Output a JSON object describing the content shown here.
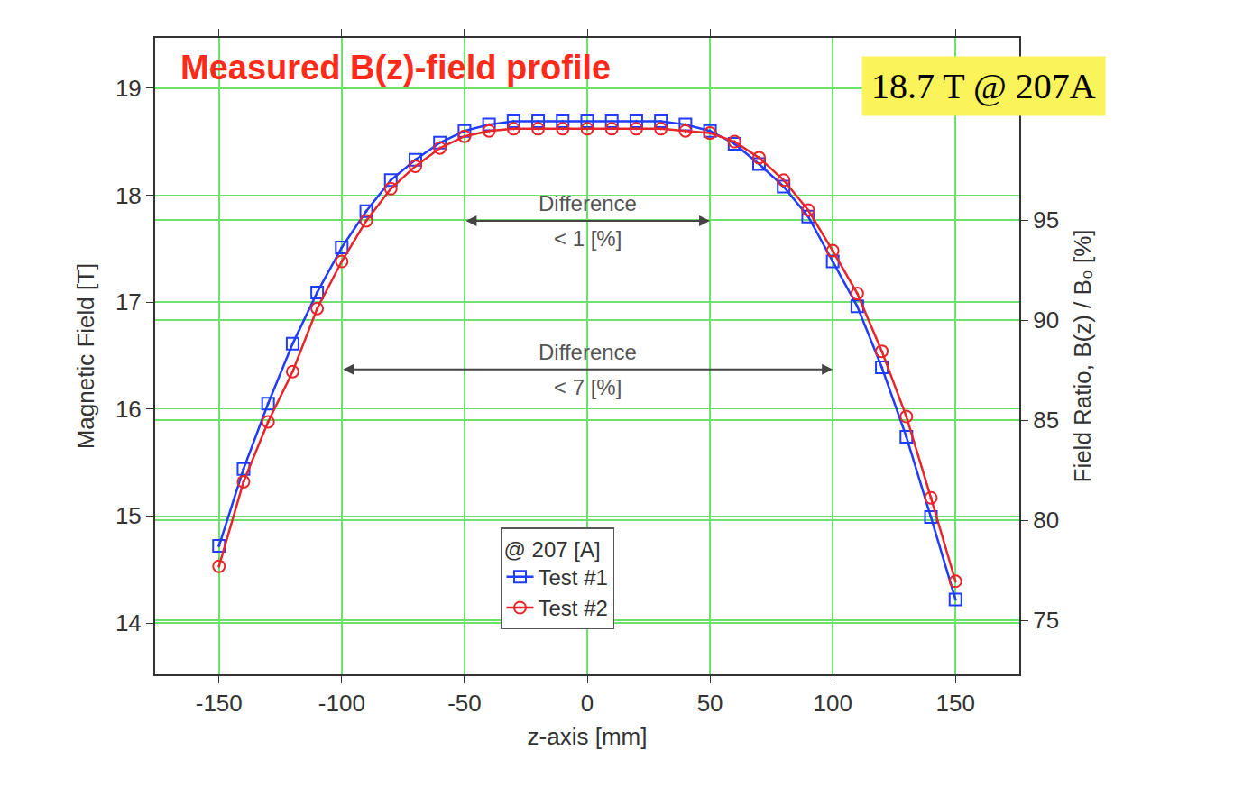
{
  "chart_data": {
    "type": "line",
    "title": "Measured B(z)-field profile",
    "x_label": "z-axis [mm]",
    "y_label": "Magnetic Field [T]",
    "y2_label": "Field Ratio, B(z) / B₀ [%]",
    "x": [
      -150,
      -140,
      -130,
      -120,
      -110,
      -100,
      -90,
      -80,
      -70,
      -60,
      -50,
      -40,
      -30,
      -20,
      -10,
      0,
      10,
      20,
      30,
      40,
      50,
      60,
      70,
      80,
      90,
      100,
      110,
      120,
      130,
      140,
      150
    ],
    "series": [
      {
        "name": "Test #1",
        "color": "#1f3cff",
        "marker": "square",
        "values": [
          14.72,
          15.44,
          16.05,
          16.61,
          17.09,
          17.51,
          17.85,
          18.14,
          18.33,
          18.49,
          18.6,
          18.66,
          18.69,
          18.69,
          18.69,
          18.69,
          18.69,
          18.69,
          18.69,
          18.66,
          18.6,
          18.48,
          18.29,
          18.08,
          17.8,
          17.38,
          16.96,
          16.39,
          15.74,
          14.99,
          14.22
        ]
      },
      {
        "name": "Test #2",
        "color": "#e8262a",
        "marker": "circle",
        "values": [
          14.53,
          15.32,
          15.88,
          16.35,
          16.94,
          17.38,
          17.76,
          18.06,
          18.27,
          18.44,
          18.55,
          18.6,
          18.62,
          18.62,
          18.62,
          18.62,
          18.62,
          18.62,
          18.62,
          18.6,
          18.58,
          18.5,
          18.35,
          18.14,
          17.86,
          17.48,
          17.08,
          16.54,
          15.93,
          15.17,
          14.39
        ]
      }
    ],
    "xlim": [
      -176,
      176
    ],
    "ylim": [
      13.52,
      19.47
    ],
    "y2lim": [
      72.3,
      104.1
    ],
    "xticks": [
      -150,
      -100,
      -50,
      0,
      50,
      100,
      150
    ],
    "yticks": [
      14,
      15,
      16,
      17,
      18,
      19
    ],
    "y2ticks": [
      75,
      80,
      85,
      90,
      95
    ],
    "grid": true,
    "legend": "bottom",
    "legend_title": "@ 207 [A]",
    "annotations": [
      {
        "text": [
          "Difference",
          "< 1 [%]"
        ],
        "x": [
          -50,
          50
        ],
        "y": 17.76
      },
      {
        "text": [
          "Difference",
          "< 7 [%]"
        ],
        "x": [
          -100,
          100
        ],
        "y": 16.37
      }
    ],
    "callout": "18.7 T @ 207A"
  }
}
